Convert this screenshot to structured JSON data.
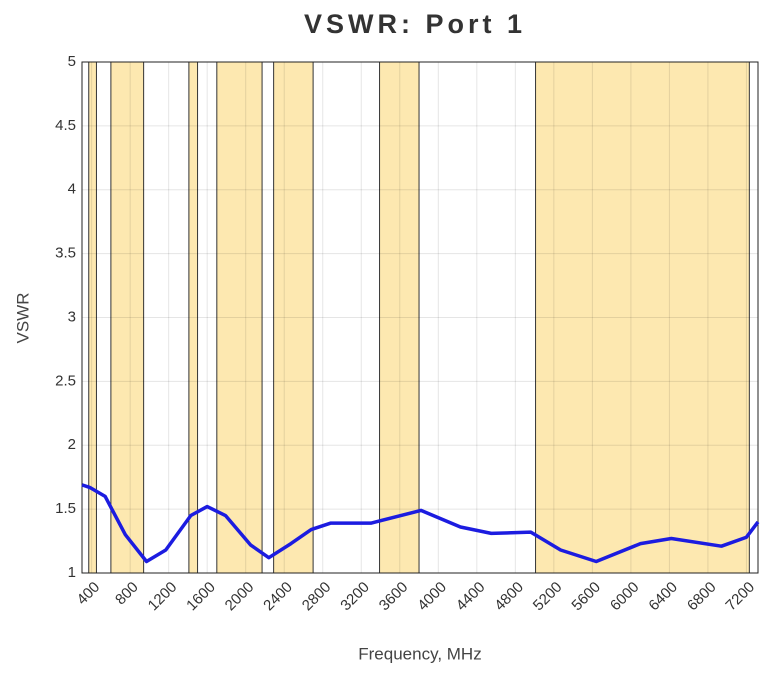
{
  "chart_data": {
    "type": "line",
    "title": "VSWR: Port 1",
    "xlabel": "Frequency, MHz",
    "ylabel": "VSWR",
    "xlim": [
      300,
      7320
    ],
    "ylim": [
      1,
      5
    ],
    "xticks": [
      400,
      800,
      1200,
      1600,
      2000,
      2400,
      2800,
      3200,
      3600,
      4000,
      4400,
      4800,
      5200,
      5600,
      6000,
      6400,
      6800,
      7200
    ],
    "yticks": [
      1,
      1.5,
      2,
      2.5,
      3,
      3.5,
      4,
      4.5,
      5
    ],
    "grid": true,
    "bands": [
      [
        370,
        450
      ],
      [
        600,
        940
      ],
      [
        1410,
        1500
      ],
      [
        1700,
        2170
      ],
      [
        2290,
        2700
      ],
      [
        3390,
        3800
      ],
      [
        5010,
        7230
      ]
    ],
    "band_color": "#fde8b0",
    "x": [
      300,
      380,
      540,
      750,
      970,
      1170,
      1430,
      1600,
      1790,
      2050,
      2240,
      2470,
      2680,
      2880,
      3300,
      3820,
      4230,
      4550,
      4960,
      5270,
      5640,
      6100,
      6420,
      6940,
      7200,
      7320
    ],
    "series": [
      {
        "name": "VSWR",
        "color": "#1c1ce0",
        "values": [
          1.69,
          1.67,
          1.6,
          1.3,
          1.09,
          1.18,
          1.45,
          1.52,
          1.45,
          1.22,
          1.12,
          1.23,
          1.34,
          1.39,
          1.39,
          1.49,
          1.36,
          1.31,
          1.32,
          1.18,
          1.09,
          1.23,
          1.27,
          1.21,
          1.28,
          1.4
        ]
      }
    ]
  }
}
